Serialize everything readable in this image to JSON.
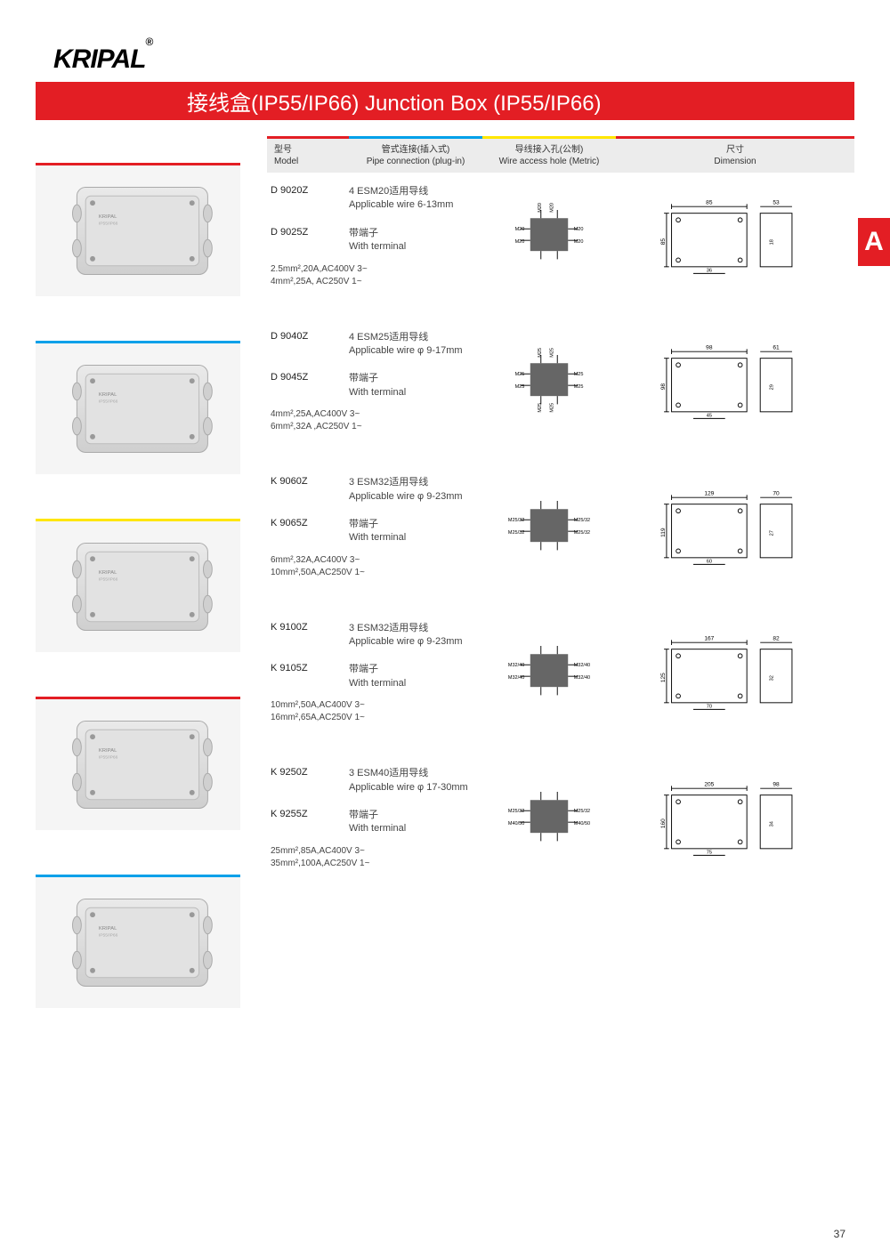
{
  "brand": "KRIPAL",
  "title_bar": "接线盒(IP55/IP66)   Junction Box (IP55/IP66)",
  "side_tab": "A",
  "page_number": "37",
  "header_colors": {
    "model": "#e31e24",
    "pipe": "#00a0e9",
    "wire": "#ffe600",
    "dim": "#e31e24"
  },
  "headers": {
    "model_cn": "型号",
    "model_en": "Model",
    "pipe_cn": "管式连接(插入式)",
    "pipe_en": "Pipe connection (plug-in)",
    "wire_cn": "导线接入孔(公制)",
    "wire_en": "Wire access hole (Metric)",
    "dim_cn": "尺寸",
    "dim_en": "Dimension"
  },
  "products": [
    {
      "thumb_border": "#e31e24",
      "model1": "D 9020Z",
      "desc1_cn": "4 ESM20适用导线",
      "desc1_en": "Applicable wire 6-13mm",
      "model2": "D 9025Z",
      "desc2_cn": "带端子",
      "desc2_en": "With terminal",
      "spec1": "2.5mm²,20A,AC400V 3~",
      "spec2": "4mm²,25A, AC250V 1~",
      "wire_labels": [
        "M20",
        "M20",
        "M20",
        "M20",
        "M20",
        "M20"
      ],
      "dim": {
        "w": "85",
        "h": "85",
        "d": "53",
        "inner_w": "36",
        "inner_h": "18"
      }
    },
    {
      "thumb_border": "#00a0e9",
      "model1": "D 9040Z",
      "desc1_cn": "4 ESM25适用导线",
      "desc1_en": "Applicable wire φ 9-17mm",
      "model2": "D 9045Z",
      "desc2_cn": "带端子",
      "desc2_en": "With terminal",
      "spec1": "4mm²,25A,AC400V 3~",
      "spec2": "6mm²,32A ,AC250V 1~",
      "wire_labels": [
        "M25",
        "M25",
        "M25",
        "M25",
        "M25",
        "M25",
        "M25",
        "M25"
      ],
      "dim": {
        "w": "98",
        "h": "98",
        "d": "61",
        "inner_w": "45",
        "inner_h": "29"
      }
    },
    {
      "thumb_border": "#ffe600",
      "model1": "K 9060Z",
      "desc1_cn": "3 ESM32适用导线",
      "desc1_en": "Applicable wire φ 9-23mm",
      "model2": "K 9065Z",
      "desc2_cn": "带端子",
      "desc2_en": "With terminal",
      "spec1": "6mm²,32A,AC400V 3~",
      "spec2": "10mm²,50A,AC250V 1~",
      "wire_labels": [
        "M25/32",
        "M25/32",
        "M25/32",
        "M25/32"
      ],
      "dim": {
        "w": "129",
        "h": "119",
        "d": "70",
        "inner_w": "60",
        "inner_h": "27"
      }
    },
    {
      "thumb_border": "#e31e24",
      "model1": "K 9100Z",
      "desc1_cn": "3 ESM32适用导线",
      "desc1_en": "Applicable wire  φ 9-23mm",
      "model2": "K 9105Z",
      "desc2_cn": "带端子",
      "desc2_en": "With terminal",
      "spec1": "10mm²,50A,AC400V 3~",
      "spec2": "16mm²,65A,AC250V 1~",
      "wire_labels": [
        "M32/40",
        "M32/40",
        "M32/40",
        "M32/40"
      ],
      "dim": {
        "w": "167",
        "h": "125",
        "d": "82",
        "inner_w": "70",
        "inner_h": "32"
      }
    },
    {
      "thumb_border": "#00a0e9",
      "model1": "K 9250Z",
      "desc1_cn": "3 ESM40适用导线",
      "desc1_en": "Applicable wire φ 17-30mm",
      "model2": "K 9255Z",
      "desc2_cn": "带端子",
      "desc2_en": "With terminal",
      "spec1": "25mm²,85A,AC400V 3~",
      "spec2": "35mm²,100A,AC250V 1~",
      "wire_labels": [
        "M25/32",
        "M40/50",
        "M25/32",
        "M40/50"
      ],
      "dim": {
        "w": "205",
        "h": "160",
        "d": "98",
        "inner_w": "75",
        "inner_h": "34"
      }
    }
  ]
}
